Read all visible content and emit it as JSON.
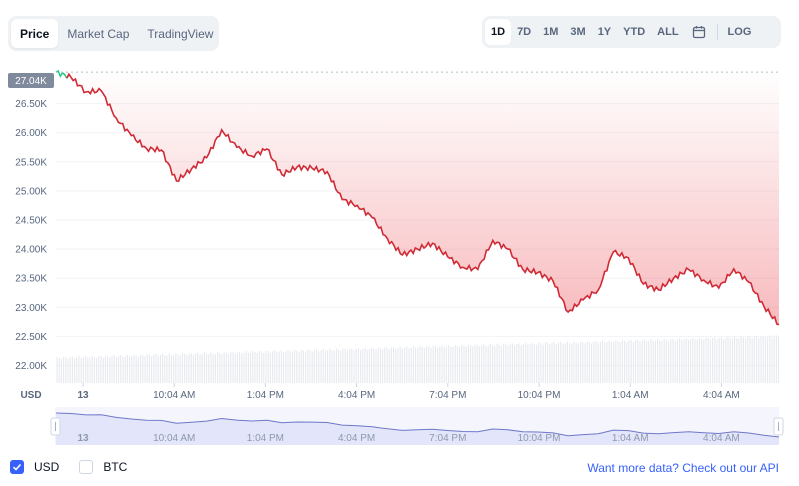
{
  "tabs": [
    {
      "label": "Price",
      "active": true
    },
    {
      "label": "Market Cap",
      "active": false
    },
    {
      "label": "TradingView",
      "active": false
    }
  ],
  "ranges": [
    {
      "label": "1D",
      "active": true
    },
    {
      "label": "7D",
      "active": false
    },
    {
      "label": "1M",
      "active": false
    },
    {
      "label": "3M",
      "active": false
    },
    {
      "label": "1Y",
      "active": false
    },
    {
      "label": "YTD",
      "active": false
    },
    {
      "label": "ALL",
      "active": false
    }
  ],
  "calendar_icon": "calendar-icon",
  "log_label": "LOG",
  "legend": {
    "usd": "USD",
    "btc": "BTC"
  },
  "api": {
    "prefix": "Want more data?",
    "link": "Check out our API"
  },
  "colors": {
    "line": "#ea3943",
    "line_up": "#16c784",
    "fill": "#ea3943",
    "accent": "#3861fb",
    "nav_fill": "#e3e5fb",
    "nav_line": "#6f78c8"
  },
  "chart_data": {
    "type": "line",
    "currency_label": "USD",
    "current_price_label": "27.04K",
    "y_ticks": [
      "26.50K",
      "26.00K",
      "25.50K",
      "25.00K",
      "24.50K",
      "24.00K",
      "23.50K",
      "23.00K",
      "22.50K",
      "22.00K"
    ],
    "x_ticks": [
      "13",
      "10:04 AM",
      "1:04 PM",
      "4:04 PM",
      "7:04 PM",
      "10:04 PM",
      "1:04 AM",
      "4:04 AM"
    ],
    "ylim": [
      21700,
      27300
    ],
    "x": [
      0.0,
      0.5,
      1.0,
      1.5,
      2.0,
      2.5,
      3.0,
      3.5,
      4.0,
      4.5,
      5.0,
      5.5,
      6.0,
      6.5,
      7.0,
      7.5,
      8.0,
      8.5,
      9.0,
      9.5,
      10.0,
      10.5,
      11.0,
      11.5,
      12.0,
      12.5,
      13.0,
      13.5,
      14.0,
      14.5,
      15.0,
      15.5,
      16.0,
      16.5,
      17.0,
      17.5,
      18.0,
      18.5,
      19.0,
      19.5,
      20.0,
      20.5,
      21.0,
      21.5,
      22.0,
      22.5,
      23.0,
      23.5,
      24.0
    ],
    "series": [
      {
        "values": [
          27040,
          26950,
          26700,
          26720,
          26250,
          25950,
          25730,
          25700,
          25170,
          25380,
          25570,
          26050,
          25750,
          25600,
          25720,
          25280,
          25410,
          25390,
          25330,
          24850,
          24750,
          24540,
          24180,
          23900,
          24000,
          24100,
          23870,
          23690,
          23650,
          24150,
          24000,
          23650,
          23600,
          23450,
          22920,
          23130,
          23300,
          23950,
          23850,
          23400,
          23300,
          23500,
          23650,
          23470,
          23330,
          23660,
          23430,
          23020,
          22700
        ]
      }
    ],
    "volume_band": {
      "start": 22.13,
      "end": 22.5
    }
  }
}
